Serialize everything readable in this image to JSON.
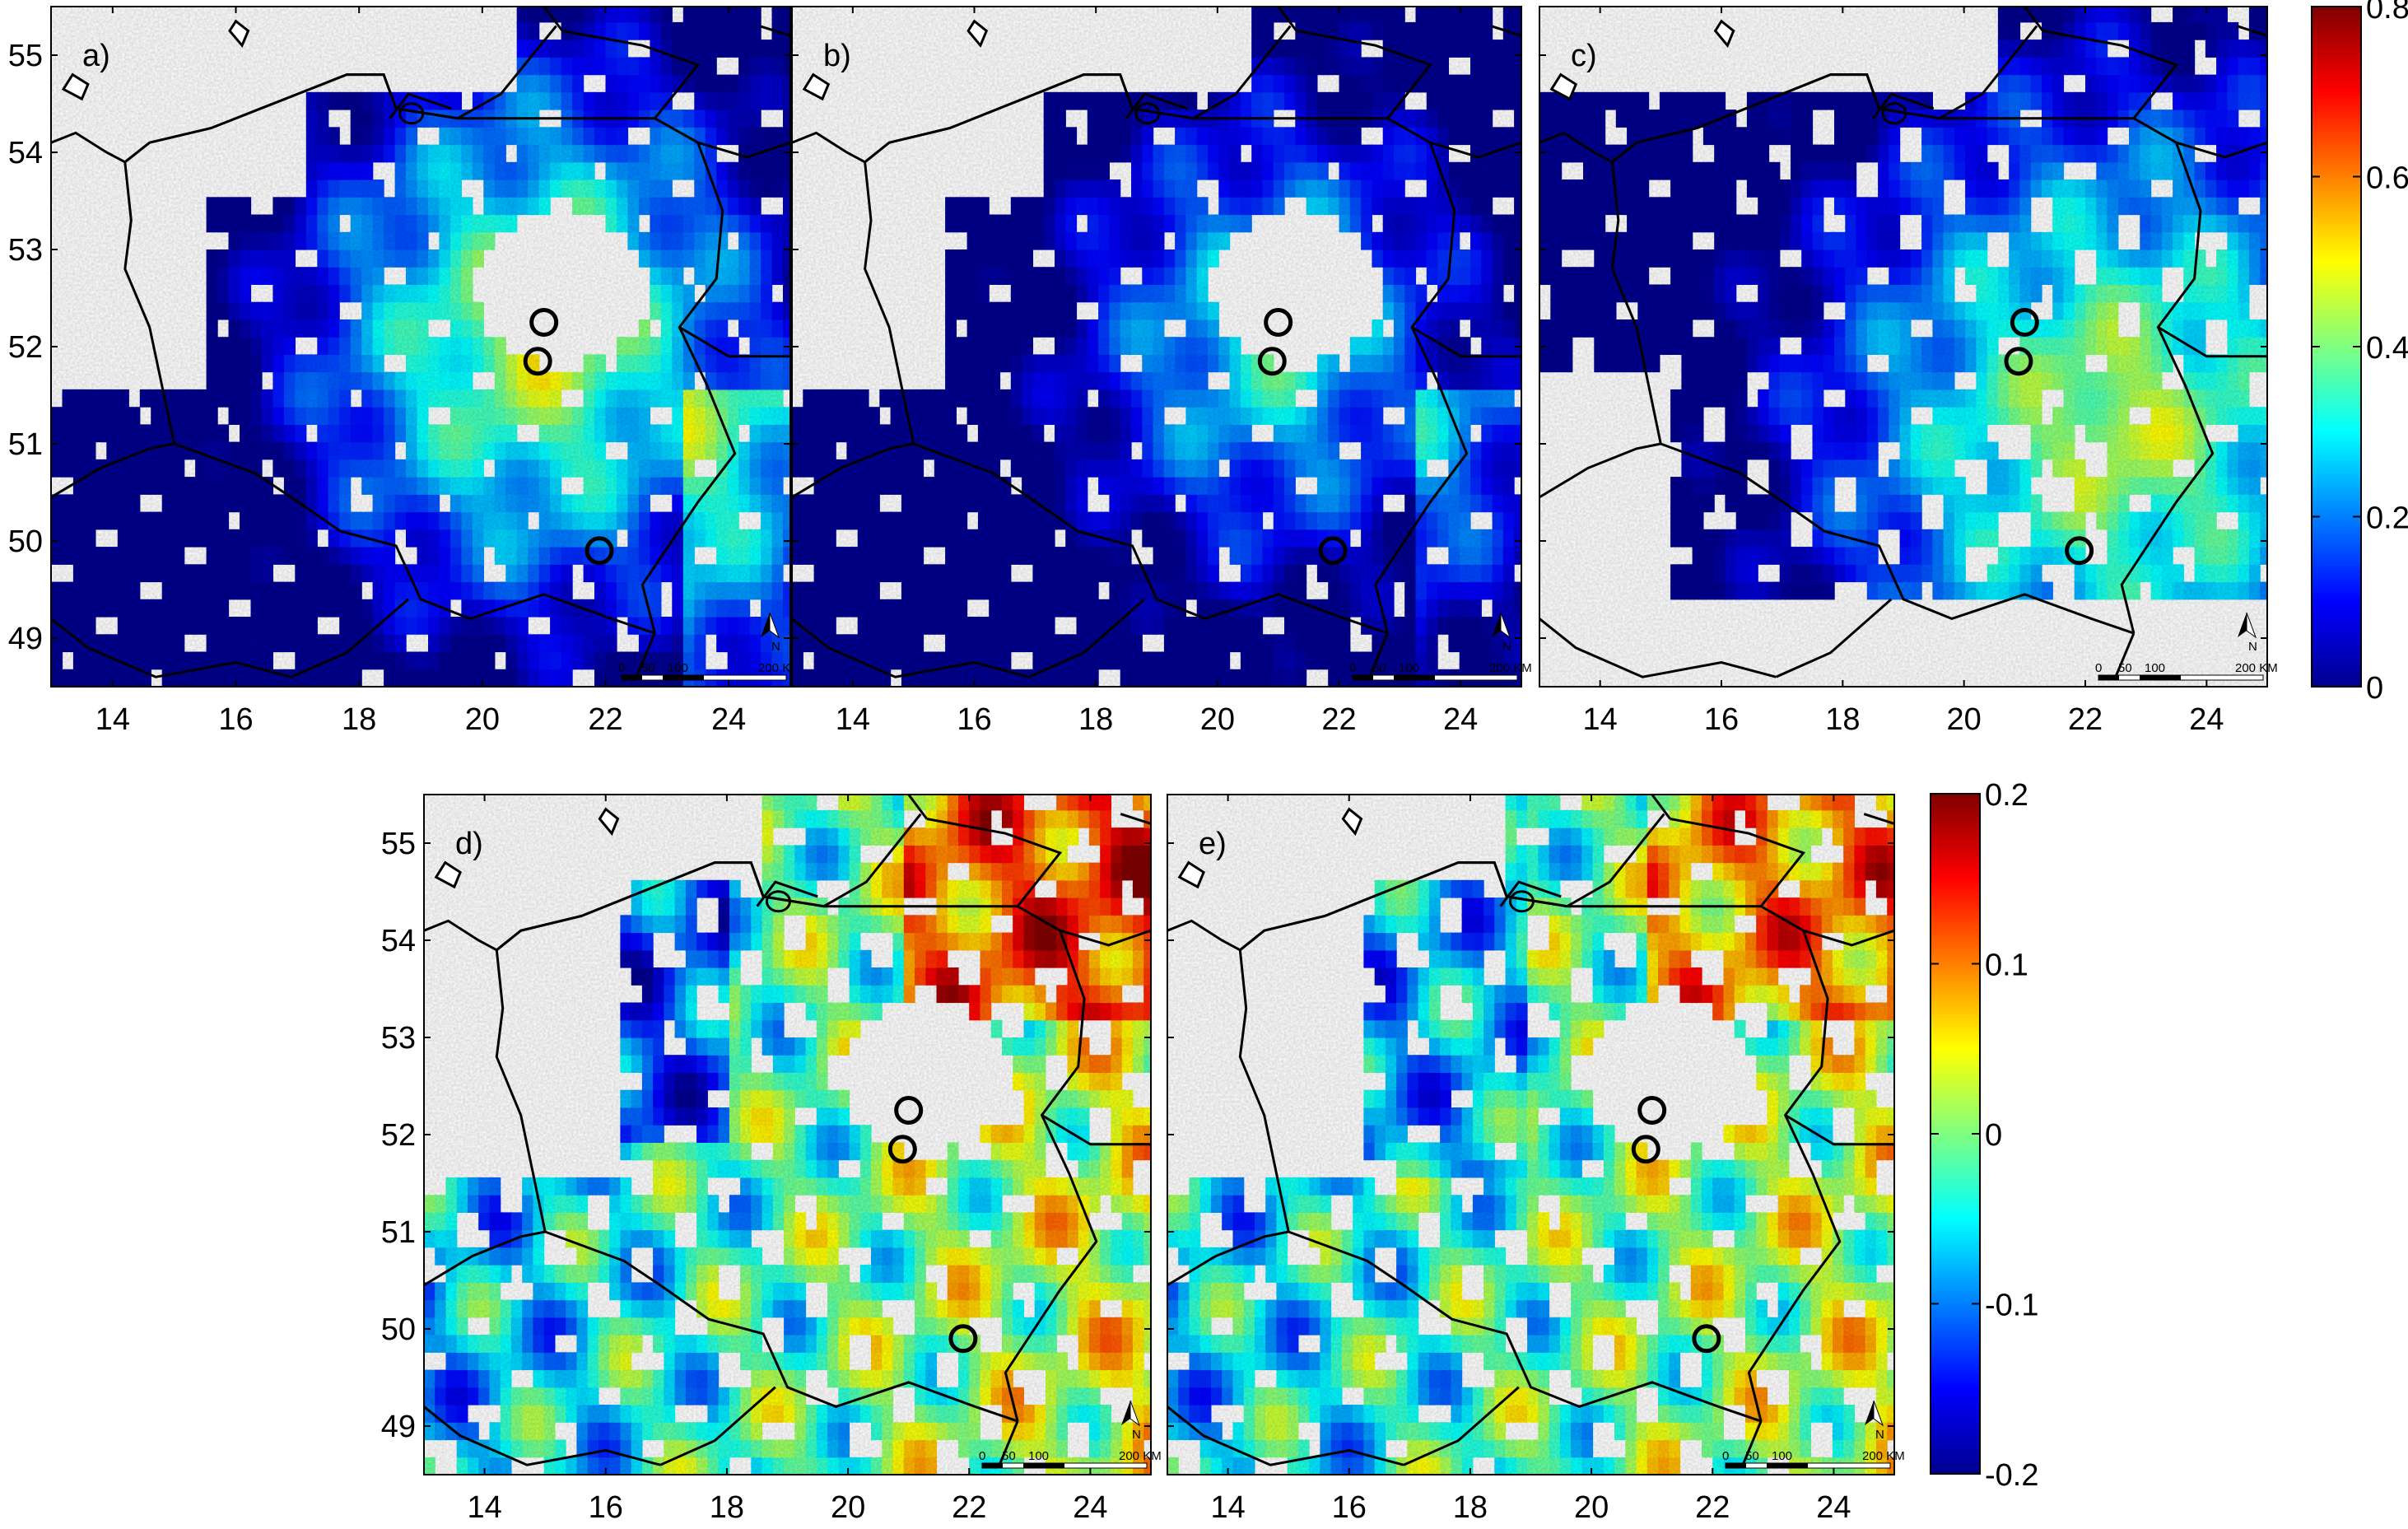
{
  "figure_type": "multi-panel heat map of Poland and neighbouring countries",
  "x_axis": {
    "ticks": [
      "14",
      "16",
      "18",
      "20",
      "22",
      "24"
    ],
    "range_deg": [
      13,
      25
    ]
  },
  "y_axis": {
    "ticks": [
      "49",
      "50",
      "51",
      "52",
      "53",
      "54",
      "55"
    ],
    "range_deg": [
      48.5,
      55.5
    ]
  },
  "panels": [
    {
      "label": "a)",
      "variable_scale": "top",
      "pattern": "high"
    },
    {
      "label": "b)",
      "variable_scale": "top",
      "pattern": "mid"
    },
    {
      "label": "c)",
      "variable_scale": "top",
      "pattern": "highc"
    },
    {
      "label": "d)",
      "variable_scale": "bottom",
      "pattern": "diffd"
    },
    {
      "label": "e)",
      "variable_scale": "bottom",
      "pattern": "diffe"
    }
  ],
  "scale_bar": {
    "labels": [
      "0",
      "50",
      "100",
      "200 KM"
    ]
  },
  "north_arrow": {
    "label": "N"
  },
  "colorbar_top": {
    "min": 0,
    "max": 0.8,
    "ticks": [
      "0",
      "0.2",
      "0.4",
      "0.6",
      "0.8"
    ]
  },
  "colorbar_bottom": {
    "min": -0.2,
    "max": 0.2,
    "ticks": [
      "-0.2",
      "-0.1",
      "0",
      "0.1",
      "0.2"
    ]
  },
  "markers": {
    "count": 3,
    "shape": "circle"
  },
  "colors": {
    "low": "#00008f",
    "mid_low": "#0080ff",
    "mid": "#20d0a0",
    "mid_high": "#f0e020",
    "high": "#f03000",
    "max": "#800000"
  }
}
